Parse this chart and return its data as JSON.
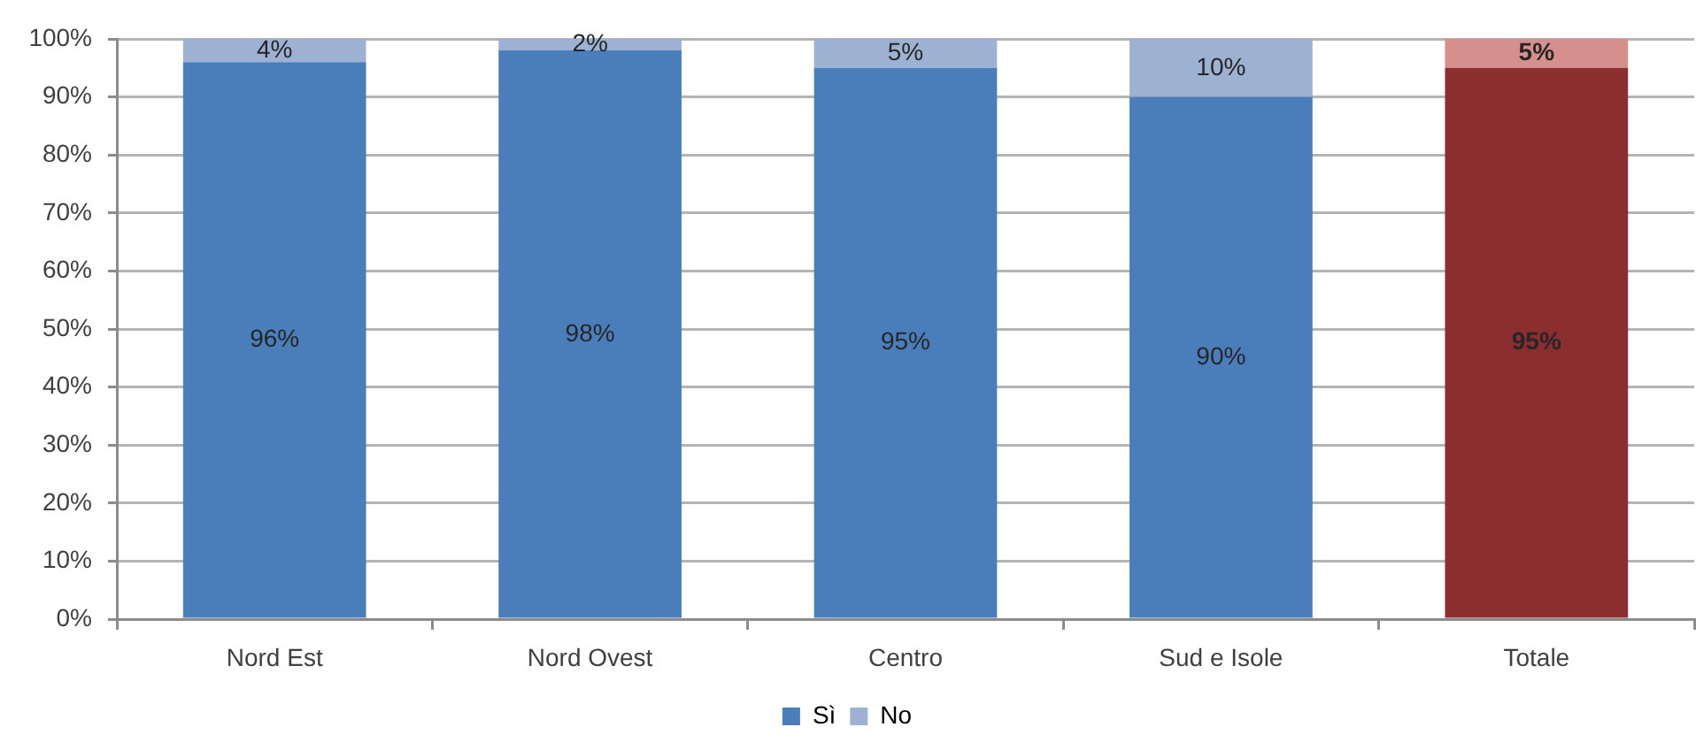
{
  "chart_data": {
    "type": "bar",
    "stacked": true,
    "categories": [
      "Nord Est",
      "Nord Ovest",
      "Centro",
      "Sud e Isole",
      "Totale"
    ],
    "series": [
      {
        "name": "Sì",
        "color": "#4a7ebb",
        "colors": [
          "#4a7ebb",
          "#4a7ebb",
          "#4a7ebb",
          "#4a7ebb",
          "#8c2d30"
        ],
        "values": [
          96,
          98,
          95,
          90,
          95
        ],
        "value_labels": [
          "96%",
          "98%",
          "95%",
          "90%",
          "95%"
        ]
      },
      {
        "name": "No",
        "color": "#9db1d3",
        "colors": [
          "#9db1d3",
          "#9db1d3",
          "#9db1d3",
          "#9db1d3",
          "#d58f8d"
        ],
        "values": [
          4,
          2,
          5,
          10,
          5
        ],
        "value_labels": [
          "4%",
          "2%",
          "5%",
          "10%",
          "5%"
        ]
      }
    ],
    "ylim": [
      0,
      100
    ],
    "yticks": [
      {
        "value": 0,
        "label": "0%"
      },
      {
        "value": 10,
        "label": "10%"
      },
      {
        "value": 20,
        "label": "20%"
      },
      {
        "value": 30,
        "label": "30%"
      },
      {
        "value": 40,
        "label": "40%"
      },
      {
        "value": 50,
        "label": "50%"
      },
      {
        "value": 60,
        "label": "60%"
      },
      {
        "value": 70,
        "label": "70%"
      },
      {
        "value": 80,
        "label": "80%"
      },
      {
        "value": 90,
        "label": "90%"
      },
      {
        "value": 100,
        "label": "100%"
      }
    ],
    "grid": "y",
    "legend": "bottom"
  }
}
